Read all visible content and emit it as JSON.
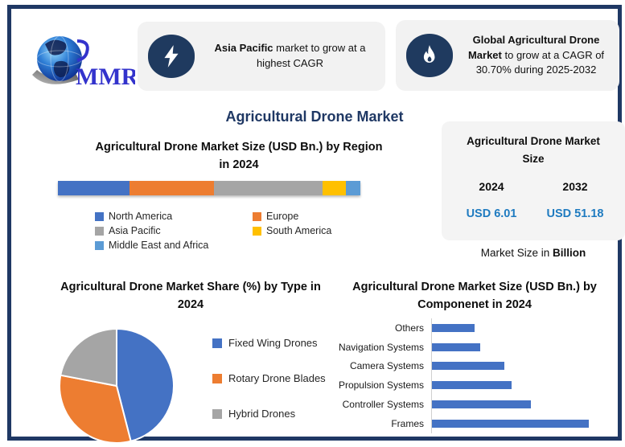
{
  "page": {
    "title": "Agricultural Drone Market"
  },
  "brand": {
    "name": "MMR"
  },
  "callouts": [
    {
      "icon": "lightning-icon",
      "bold": "Asia Pacific",
      "rest": " market to grow at a highest CAGR"
    },
    {
      "icon": "flame-icon",
      "bold": "Global Agricultural Drone Market",
      "rest": " to grow at a CAGR of 30.70% during 2025-2032"
    }
  ],
  "stats_card": {
    "title": "Agricultural Drone Market Size",
    "columns": [
      {
        "year": "2024",
        "value": "USD 6.01"
      },
      {
        "year": "2032",
        "value": "USD 51.18"
      }
    ],
    "caption_prefix": "Market Size in ",
    "caption_bold": "Billion",
    "value_color": "#1f7bc0"
  },
  "colors": {
    "frame_navy": "#1f3864",
    "badge_navy": "#1f3a5f",
    "title_navy": "#1f3864",
    "bar_blue": "#4472c4"
  },
  "chart_data": [
    {
      "type": "bar",
      "variant": "stacked-horizontal",
      "title": "Agricultural Drone Market Size (USD Bn.) by Region in 2024",
      "categories": [
        "North America",
        "Europe",
        "Asia Pacific",
        "South America",
        "Middle East and Africa"
      ],
      "values": [
        23.6,
        28.0,
        36.0,
        7.5,
        4.9
      ],
      "unit": "percent of bar length (share of 2024 market, axis unlabeled)",
      "colors": [
        "#4472c4",
        "#ed7d31",
        "#a5a5a5",
        "#ffc000",
        "#5b9bd5"
      ],
      "legend_position": "bottom"
    },
    {
      "type": "pie",
      "title": "Agricultural Drone Market Share (%) by Type in 2024",
      "categories": [
        "Fixed Wing Drones",
        "Rotary Drone Blades",
        "Hybrid Drones"
      ],
      "values": [
        46,
        32,
        22
      ],
      "unit": "percent (estimated from slice angles, no data labels shown)",
      "colors": [
        "#4472c4",
        "#ed7d31",
        "#a5a5a5"
      ],
      "start_angle_deg": 0,
      "legend_position": "right"
    },
    {
      "type": "bar",
      "variant": "horizontal",
      "title": "Agricultural Drone Market Size (USD Bn.) by Componenet in 2024",
      "categories": [
        "Others",
        "Navigation Systems",
        "Camera Systems",
        "Propulsion Systems",
        "Controller Systems",
        "Frames"
      ],
      "values": [
        27,
        31,
        46,
        51,
        63,
        100
      ],
      "unit": "relative bar length, % of longest bar (axis unlabeled)",
      "bar_color": "#4472c4",
      "grid": false
    }
  ]
}
